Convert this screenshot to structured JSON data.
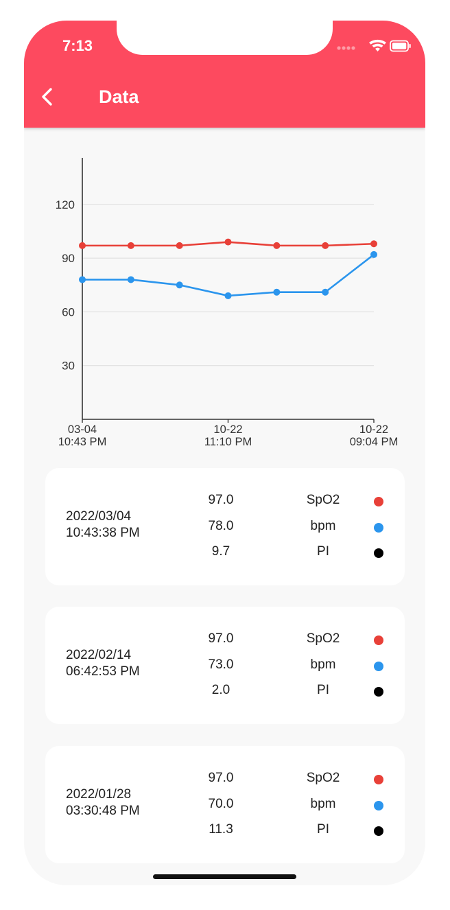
{
  "status_bar": {
    "time": "7:13"
  },
  "header": {
    "title": "Data",
    "back_icon": "chevron-left-icon"
  },
  "colors": {
    "spo2": "#e84038",
    "bpm": "#2b95ed",
    "pi": "#000000",
    "header": "#fd4a5f"
  },
  "chart_data": {
    "type": "line",
    "x": [
      0,
      1,
      2,
      3,
      4,
      5,
      6
    ],
    "tick_positions": [
      0,
      3,
      6
    ],
    "tick_labels": [
      [
        "03-04",
        "10:43 PM"
      ],
      [
        "10-22",
        "11:10 PM"
      ],
      [
        "10-22",
        "09:04 PM"
      ]
    ],
    "y_ticks": [
      30,
      60,
      90,
      120
    ],
    "ylim": [
      0,
      146
    ],
    "grid": true,
    "series": [
      {
        "values": [
          97,
          97,
          97,
          99,
          97,
          97,
          98
        ],
        "color": "#e84038"
      },
      {
        "values": [
          78,
          78,
          75,
          69,
          71,
          71,
          92
        ],
        "color": "#2b95ed"
      }
    ]
  },
  "records": [
    {
      "date": "2022/03/04",
      "time": "10:43:38 PM",
      "spo2": "97.0",
      "bpm": "78.0",
      "pi": "9.7"
    },
    {
      "date": "2022/02/14",
      "time": "06:42:53 PM",
      "spo2": "97.0",
      "bpm": "73.0",
      "pi": "2.0"
    },
    {
      "date": "2022/01/28",
      "time": "03:30:48 PM",
      "spo2": "97.0",
      "bpm": "70.0",
      "pi": "11.3"
    }
  ],
  "metric_labels": {
    "spo2": "SpO2",
    "bpm": "bpm",
    "pi": "PI"
  }
}
